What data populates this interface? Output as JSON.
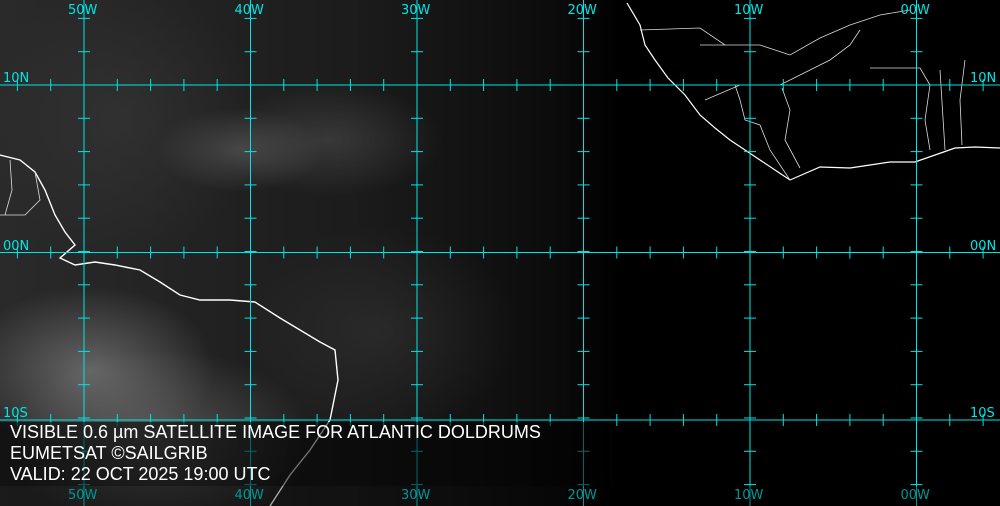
{
  "map": {
    "grid_color": "#00e5e5",
    "longitude_labels": [
      "50W",
      "40W",
      "30W",
      "20W",
      "10W",
      "00W"
    ],
    "latitude_labels": [
      "10N",
      "00N",
      "10S"
    ],
    "caption": {
      "line1": "VISIBLE 0.6 µm SATELLITE IMAGE FOR ATLANTIC DOLDRUMS",
      "line2": "EUMETSAT ©SAILGRIB",
      "line3": "VALID:  22 OCT 2025 19:00 UTC"
    }
  }
}
